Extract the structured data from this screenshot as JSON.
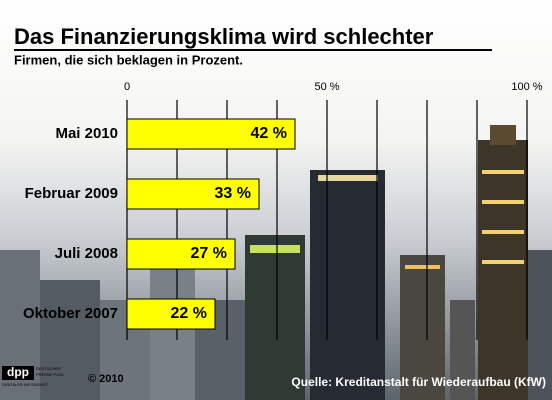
{
  "chart_data": {
    "type": "hbar",
    "title": "Das Finanzierungsklima wird schlechter",
    "subtitle": "Firmen, die sich beklagen in Prozent.",
    "categories": [
      "Mai 2010",
      "Februar 2009",
      "Juli 2008",
      "Oktober 2007"
    ],
    "values": [
      42,
      33,
      27,
      22
    ],
    "value_labels": [
      "42 %",
      "33 %",
      "27 %",
      "22 %"
    ],
    "color": "#ffff00",
    "xlim": [
      0,
      100
    ],
    "xticks": [
      0,
      {
        "value": 50,
        "label": "50 %"
      },
      {
        "value": 100,
        "label": "100 %"
      }
    ],
    "grid": true,
    "grid_ticks": [
      0,
      12.5,
      25,
      37.5,
      50,
      62.5,
      75,
      87.5,
      100
    ],
    "source": "Quelle: Kreditanstalt für Wiederaufbau (KfW)",
    "copyright": "© 2010",
    "logo": "dpp",
    "logo_text": [
      "DEUTSCHER",
      "PRESSE POOL",
      "DIGITALER INFODIENST"
    ]
  }
}
